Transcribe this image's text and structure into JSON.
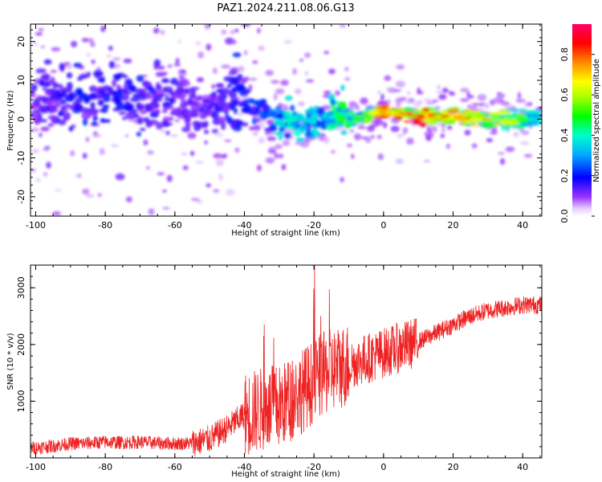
{
  "figure": {
    "title": "PAZ1.2024.211.08.06.G13"
  },
  "chart_data": [
    {
      "type": "heatmap",
      "title": "PAZ1.2024.211.08.06.G13",
      "xlabel": "Height of straight line (km)",
      "ylabel": "Frequency (Hz)",
      "xlim": [
        -101.5,
        45.5
      ],
      "ylim": [
        -25,
        24.5
      ],
      "xticks": [
        -100,
        -80,
        -60,
        -40,
        -20,
        0,
        20,
        40
      ],
      "yticks": [
        -20,
        -10,
        0,
        10,
        20
      ],
      "colorbar": {
        "label": "Normalized spectral amplitude",
        "range": [
          0.0,
          0.95
        ],
        "ticks": [
          0.0,
          0.2,
          0.4,
          0.6,
          0.8
        ],
        "colormap": "rainbow (white-violet at 0, blue, cyan, green, yellow, orange, red, magenta at 1)"
      },
      "ridge": {
        "description": "dominant spectral ridge (approx.)",
        "x": [
          -100,
          -90,
          -80,
          -70,
          -60,
          -50,
          -45,
          -40,
          -35,
          -30,
          -25,
          -20,
          -15,
          -10,
          -5,
          0,
          5,
          10,
          20,
          30,
          40,
          45
        ],
        "y": [
          4,
          5,
          6,
          6,
          4,
          2,
          6,
          4,
          2,
          0,
          0,
          -1,
          1,
          0,
          1,
          2,
          1.5,
          1,
          0.5,
          0,
          0,
          0
        ],
        "amplitude": [
          0.15,
          0.2,
          0.2,
          0.2,
          0.15,
          0.15,
          0.2,
          0.2,
          0.25,
          0.35,
          0.4,
          0.35,
          0.45,
          0.5,
          0.55,
          0.8,
          0.75,
          0.85,
          0.8,
          0.75,
          0.5,
          0.4
        ]
      }
    },
    {
      "type": "line",
      "xlabel": "Height of straight line (km)",
      "ylabel": "SNR (10 * v/v)",
      "xlim": [
        -101.5,
        45.5
      ],
      "ylim": [
        0,
        3400
      ],
      "xticks": [
        -100,
        -80,
        -60,
        -40,
        -20,
        0,
        20,
        40
      ],
      "yticks": [
        1000,
        2000,
        3000
      ],
      "color": "#ee2222",
      "series": [
        {
          "x": [
            -100,
            -95,
            -90,
            -85,
            -80,
            -75,
            -70,
            -65,
            -60,
            -55,
            -50,
            -45,
            -40,
            -35,
            -30,
            -25,
            -22,
            -20,
            -18,
            -15,
            -10,
            -5,
            0,
            5,
            10,
            15,
            20,
            25,
            30,
            35,
            40,
            45
          ],
          "values": [
            180,
            210,
            250,
            260,
            280,
            270,
            280,
            260,
            250,
            260,
            330,
            520,
            760,
            860,
            900,
            1100,
            1250,
            1350,
            1450,
            1550,
            1650,
            1750,
            1850,
            1950,
            2050,
            2200,
            2350,
            2500,
            2600,
            2650,
            2700,
            2700
          ]
        }
      ]
    }
  ]
}
